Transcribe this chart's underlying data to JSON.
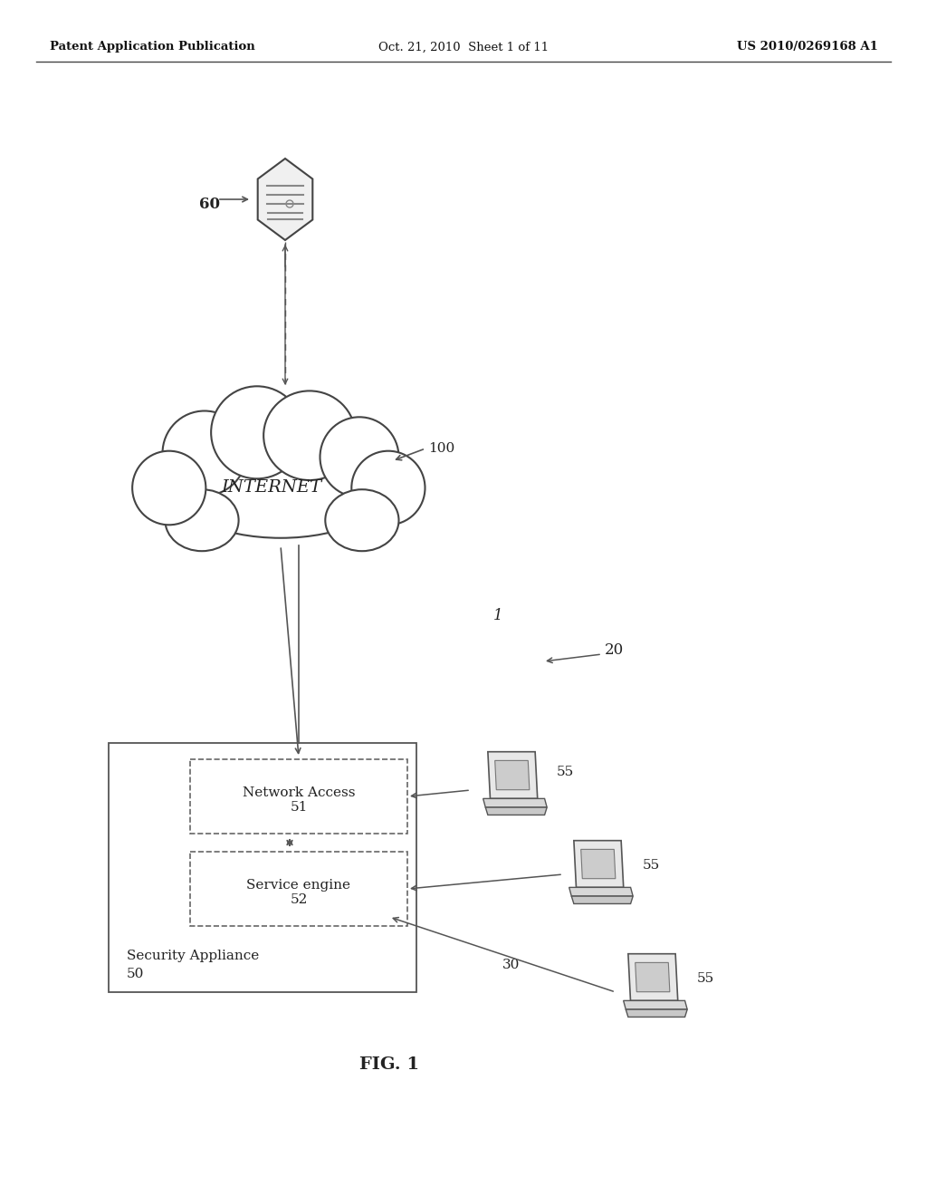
{
  "bg_color": "#ffffff",
  "header_left": "Patent Application Publication",
  "header_mid": "Oct. 21, 2010  Sheet 1 of 11",
  "header_right": "US 2010/0269168 A1",
  "fig_label": "FIG. 1",
  "labels": {
    "internet": "INTERNET",
    "network_access": "Network Access\n51",
    "service_engine": "Service engine\n52",
    "security_appliance_line1": "Security Appliance",
    "security_appliance_line2": "50",
    "label_60": "60",
    "label_100": "100",
    "label_1": "1",
    "label_20": "20",
    "label_30": "30",
    "label_55a": "55",
    "label_55b": "55",
    "label_55c": "55"
  },
  "line_color": "#555555",
  "text_color": "#222222"
}
